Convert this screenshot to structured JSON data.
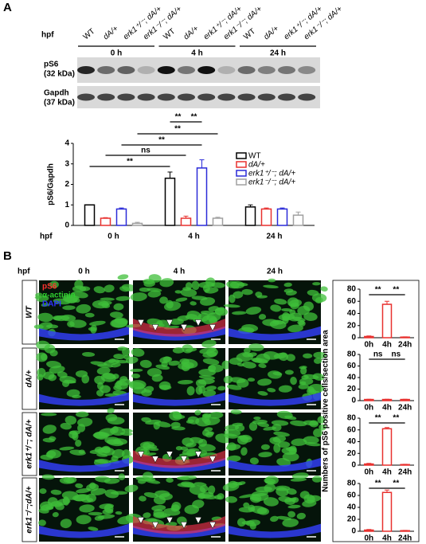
{
  "panel_a": {
    "label": "A",
    "hpf_label": "hpf",
    "lanes": [
      "WT",
      "dA/+",
      "erk1⁺/⁻; dA/+",
      "erk1⁻/⁻; dA/+",
      "WT",
      "dA/+",
      "erk1⁺/⁻; dA/+",
      "erk1⁻/⁻; dA/+",
      "WT",
      "dA/+",
      "erk1⁺/⁻; dA/+",
      "erk1⁻/⁻; dA/+"
    ],
    "timepoints": [
      "0 h",
      "4 h",
      "24 h"
    ],
    "blots": [
      {
        "name": "pS6",
        "size": "(32 kDa)"
      },
      {
        "name": "Gapdh",
        "size": "(37 kDa)"
      }
    ]
  },
  "panel_b": {
    "label": "B",
    "hpf_label": "hpf",
    "timepoints": [
      "0 h",
      "4 h",
      "24 h"
    ],
    "rows": [
      "WT",
      "dA/+",
      "erk1⁺/⁻; dA/+",
      "erk1⁻/⁻;dA/+"
    ],
    "stains": [
      {
        "name": "pS6",
        "color": "#ff3030"
      },
      {
        "name": "α-actinin",
        "color": "#30d030"
      },
      {
        "name": "DAPI",
        "color": "#3030ff"
      }
    ],
    "chart_y_label": "Numbers of pS6 positive cells/section area"
  },
  "chart_data": [
    {
      "type": "bar",
      "y_label": "pS6/Gapdh",
      "x_label": "hpf",
      "categories": [
        "0 h",
        "4 h",
        "24 h"
      ],
      "ylim": [
        0,
        4
      ],
      "yticks": [
        0,
        1,
        2,
        3,
        4
      ],
      "series": [
        {
          "name": "WT",
          "color": "#000000",
          "values": [
            1,
            2.3,
            0.9
          ],
          "errors": [
            0,
            0.3,
            0.1
          ]
        },
        {
          "name": "dA/+",
          "color": "#e8312f",
          "values": [
            0.35,
            0.35,
            0.8
          ],
          "errors": [
            0.03,
            0.1,
            0.05
          ]
        },
        {
          "name": "erk1⁺/⁻; dA/+",
          "color": "#2a2ad8",
          "values": [
            0.8,
            2.8,
            0.8
          ],
          "errors": [
            0.05,
            0.4,
            0.05
          ]
        },
        {
          "name": "erk1⁻/⁻; dA/+",
          "color": "#a0a0a0",
          "values": [
            0.1,
            0.35,
            0.5
          ],
          "errors": [
            0.05,
            0.05,
            0.15
          ]
        }
      ],
      "brackets": [
        {
          "text": "**",
          "from": [
            0,
            0
          ],
          "to": [
            0,
            1
          ]
        },
        {
          "text": "ns",
          "from": [
            1,
            0
          ],
          "to": [
            1,
            1
          ]
        },
        {
          "text": "**",
          "from": [
            2,
            0
          ],
          "to": [
            2,
            1
          ]
        },
        {
          "text": "**",
          "from": [
            3,
            0
          ],
          "to": [
            3,
            1
          ]
        },
        {
          "text": "**",
          "from": [
            0,
            1
          ],
          "to": [
            1,
            1
          ]
        },
        {
          "text": "**",
          "from": [
            1,
            1
          ],
          "to": [
            2,
            1
          ]
        }
      ]
    },
    {
      "type": "bar",
      "categories": [
        "0h",
        "4h",
        "24h"
      ],
      "ylim": [
        0,
        80
      ],
      "yticks": [
        0,
        20,
        40,
        60,
        80
      ],
      "series": [
        {
          "color": "#e8312f",
          "values": [
            2,
            55,
            1
          ],
          "errors": [
            1,
            5,
            0.5
          ]
        }
      ],
      "brackets": [
        {
          "text": "**",
          "from": [
            0,
            0
          ],
          "to": [
            0,
            1
          ]
        },
        {
          "text": "**",
          "from": [
            0,
            1
          ],
          "to": [
            0,
            2
          ]
        }
      ]
    },
    {
      "type": "bar",
      "categories": [
        "0h",
        "4h",
        "24h"
      ],
      "ylim": [
        0,
        80
      ],
      "yticks": [
        0,
        20,
        40,
        60,
        80
      ],
      "series": [
        {
          "color": "#e8312f",
          "values": [
            2,
            2,
            2
          ],
          "errors": [
            0.5,
            0.5,
            0.5
          ]
        }
      ],
      "brackets": [
        {
          "text": "ns",
          "from": [
            0,
            0
          ],
          "to": [
            0,
            1
          ]
        },
        {
          "text": "ns",
          "from": [
            0,
            1
          ],
          "to": [
            0,
            2
          ]
        }
      ]
    },
    {
      "type": "bar",
      "categories": [
        "0h",
        "4h",
        "24h"
      ],
      "ylim": [
        0,
        80
      ],
      "yticks": [
        0,
        20,
        40,
        60,
        80
      ],
      "series": [
        {
          "color": "#e8312f",
          "values": [
            2,
            62,
            1
          ],
          "errors": [
            1,
            2,
            0.5
          ]
        }
      ],
      "brackets": [
        {
          "text": "**",
          "from": [
            0,
            0
          ],
          "to": [
            0,
            1
          ]
        },
        {
          "text": "**",
          "from": [
            0,
            1
          ],
          "to": [
            0,
            2
          ]
        }
      ]
    },
    {
      "type": "bar",
      "categories": [
        "0h",
        "4h",
        "24h"
      ],
      "ylim": [
        0,
        80
      ],
      "yticks": [
        0,
        20,
        40,
        60,
        80
      ],
      "series": [
        {
          "color": "#e8312f",
          "values": [
            2,
            65,
            1
          ],
          "errors": [
            1,
            4,
            0.5
          ]
        }
      ],
      "brackets": [
        {
          "text": "**",
          "from": [
            0,
            0
          ],
          "to": [
            0,
            1
          ]
        },
        {
          "text": "**",
          "from": [
            0,
            1
          ],
          "to": [
            0,
            2
          ]
        }
      ]
    }
  ]
}
